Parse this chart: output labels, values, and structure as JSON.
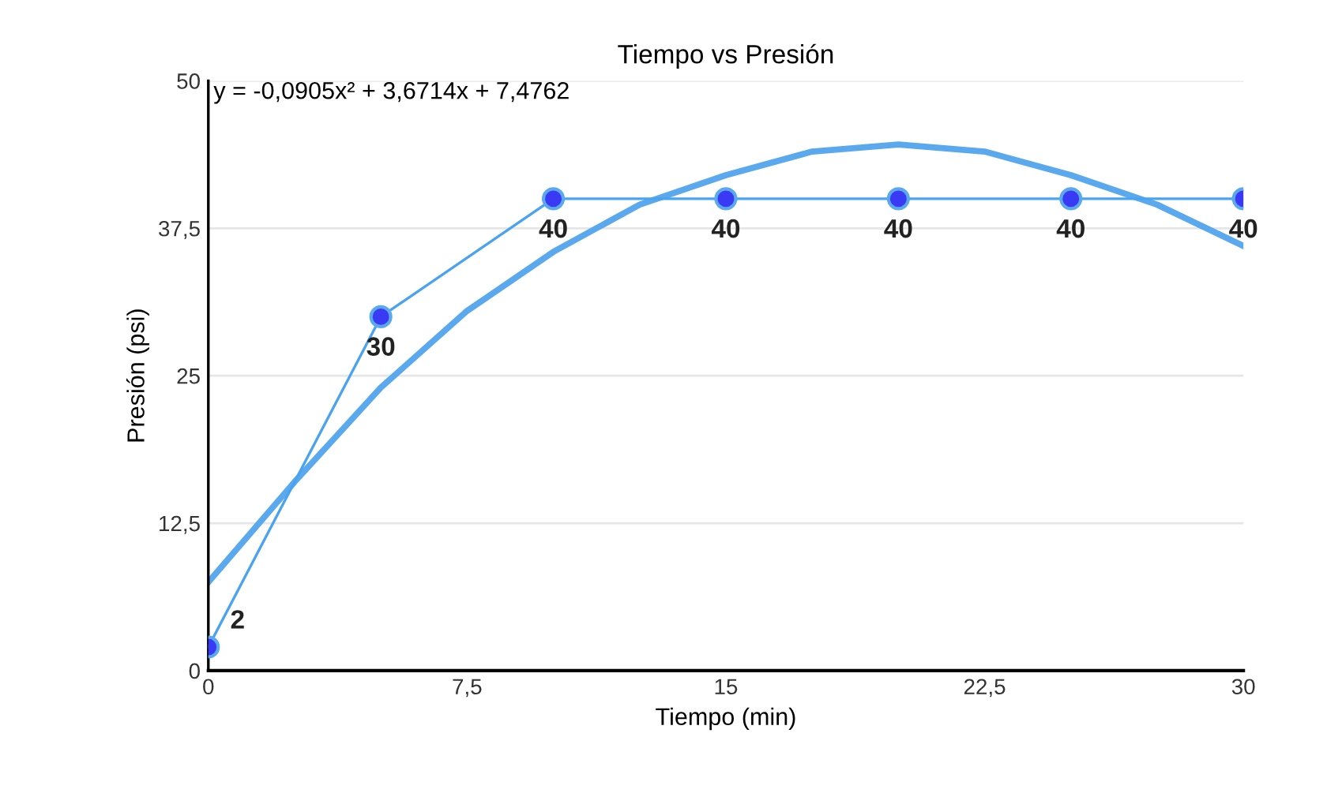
{
  "chart_data": {
    "type": "line",
    "title": "Tiempo vs Presión",
    "xlabel": "Tiempo (min)",
    "ylabel": "Presión (psi)",
    "annotations": [
      "y = -0,0905x² + 3,6714x + 7,4762"
    ],
    "series": [
      {
        "color": "#4aa3f0",
        "x": [
          0,
          5,
          10,
          15,
          20,
          25,
          30
        ],
        "values": [
          2,
          30,
          40,
          40,
          40,
          40,
          40
        ],
        "marker": "circle",
        "data_labels": true
      },
      {
        "color": "#5aa8ee",
        "x": [
          0,
          2.5,
          5,
          7.5,
          10,
          12.5,
          15,
          17.5,
          20,
          22.5,
          25,
          27.5,
          30
        ],
        "values": [
          7.5,
          16,
          24,
          30.5,
          35.5,
          39.5,
          42,
          44,
          44.6,
          44,
          42,
          39.5,
          36
        ],
        "marker": "none"
      }
    ],
    "xlim": [
      0,
      30
    ],
    "ylim": [
      0,
      50
    ],
    "xticks": [
      {
        "value": 0,
        "label": "0"
      },
      {
        "value": 7.5,
        "label": "7,5"
      },
      {
        "value": 15,
        "label": "15"
      },
      {
        "value": 22.5,
        "label": "22,5"
      },
      {
        "value": 30,
        "label": "30"
      }
    ],
    "yticks": [
      {
        "value": 0,
        "label": "0"
      },
      {
        "value": 12.5,
        "label": "12,5"
      },
      {
        "value": 25,
        "label": "25"
      },
      {
        "value": 37.5,
        "label": "37,5"
      },
      {
        "value": 50,
        "label": "50"
      }
    ],
    "grid": "y",
    "legend": false
  }
}
